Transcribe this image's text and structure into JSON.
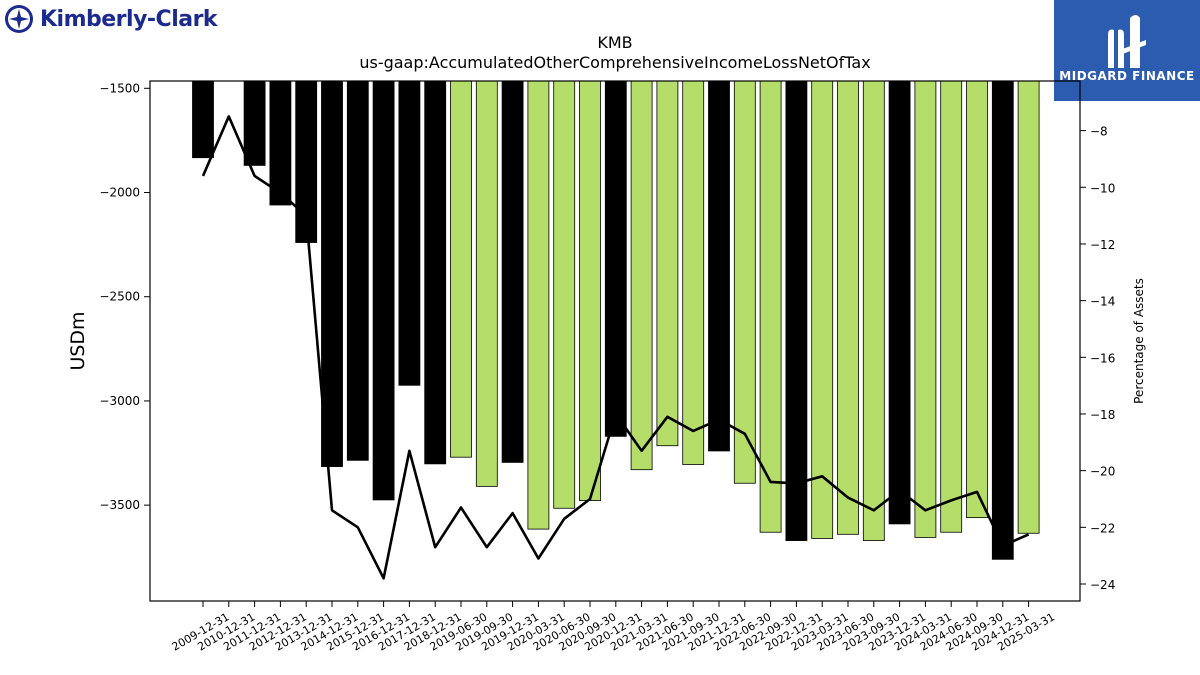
{
  "header": {
    "company_logo_text": "Kimberly-Clark",
    "brand_logo_text": "MIDGARD FINANCE"
  },
  "chart_data": {
    "type": "bar",
    "title": "KMB",
    "subtitle": "us-gaap:AccumulatedOtherComprehensiveIncomeLossNetOfTax",
    "ylabel": "USDm",
    "y2label": "Percentage of Assets",
    "ylim": [
      -3960,
      -1465
    ],
    "y2lim": [
      -24.6,
      -6.25
    ],
    "yticks": [
      -1500,
      -2000,
      -2500,
      -3000,
      -3500
    ],
    "y2ticks": [
      -8,
      -10,
      -12,
      -14,
      -16,
      -18,
      -20,
      -22,
      -24
    ],
    "categories": [
      "2009-12-31",
      "2010-12-31",
      "2011-12-31",
      "2012-12-31",
      "2013-12-31",
      "2014-12-31",
      "2015-12-31",
      "2016-12-31",
      "2017-12-31",
      "2018-12-31",
      "2019-06-30",
      "2019-09-30",
      "2019-12-31",
      "2020-03-31",
      "2020-06-30",
      "2020-09-30",
      "2020-12-31",
      "2021-03-31",
      "2021-06-30",
      "2021-09-30",
      "2021-12-31",
      "2022-06-30",
      "2022-09-30",
      "2022-12-31",
      "2023-03-31",
      "2023-06-30",
      "2023-09-30",
      "2023-12-31",
      "2024-03-31",
      "2024-06-30",
      "2024-09-30",
      "2024-12-31",
      "2025-03-31"
    ],
    "series": [
      {
        "values": [
          -1833,
          null,
          -1870,
          -2060,
          -2240,
          -3315,
          -3285,
          -3475,
          -2925,
          -3302,
          -3270,
          -3410,
          -3295,
          -3615,
          -3515,
          -3478,
          -3170,
          -3330,
          -3215,
          -3305,
          -3240,
          -3395,
          -3630,
          -3670,
          -3660,
          -3640,
          -3670,
          -3590,
          -3655,
          -3630,
          -3560,
          -3760,
          -3635
        ],
        "bar_colors": [
          "#000000",
          "#000000",
          "#000000",
          "#000000",
          "#000000",
          "#000000",
          "#000000",
          "#000000",
          "#000000",
          "#000000",
          "#b5dd6a",
          "#b5dd6a",
          "#000000",
          "#b5dd6a",
          "#b5dd6a",
          "#b5dd6a",
          "#000000",
          "#b5dd6a",
          "#b5dd6a",
          "#b5dd6a",
          "#000000",
          "#b5dd6a",
          "#b5dd6a",
          "#000000",
          "#b5dd6a",
          "#b5dd6a",
          "#b5dd6a",
          "#000000",
          "#b5dd6a",
          "#b5dd6a",
          "#b5dd6a",
          "#000000",
          "#b5dd6a"
        ]
      },
      {
        "axis": "right",
        "values": [
          -9.6,
          -7.5,
          -9.6,
          -10.2,
          -11.0,
          -21.4,
          -22.0,
          -23.8,
          -19.3,
          -22.7,
          -21.3,
          -22.7,
          -21.5,
          -23.1,
          -21.7,
          -21.0,
          -18.0,
          -19.3,
          -18.1,
          -18.6,
          -18.2,
          -18.7,
          -20.4,
          -20.45,
          -20.2,
          -20.95,
          -21.4,
          -20.7,
          -21.4,
          -21.05,
          -20.75,
          -22.65,
          -22.25
        ],
        "color": "#000000"
      }
    ]
  }
}
